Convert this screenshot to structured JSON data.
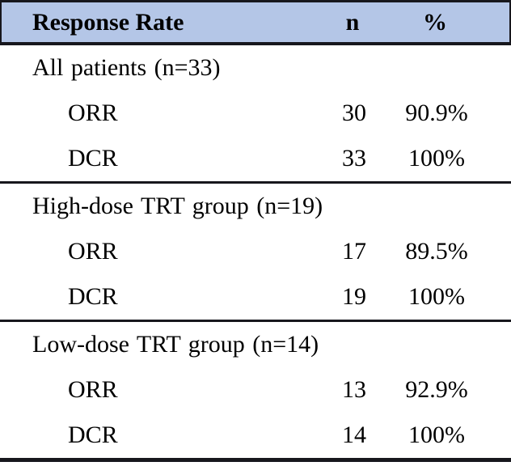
{
  "table": {
    "colors": {
      "header_bg": "#b4c6e7",
      "border": "#17171d",
      "text": "#000000"
    },
    "header": {
      "label": "Response Rate",
      "n": "n",
      "pct": "%"
    },
    "sections": [
      {
        "label": "All patients (n=33)",
        "rows": [
          {
            "label": "ORR",
            "n": "30",
            "pct": "90.9%"
          },
          {
            "label": "DCR",
            "n": "33",
            "pct": "100%"
          }
        ]
      },
      {
        "label": "High-dose TRT group (n=19)",
        "rows": [
          {
            "label": "ORR",
            "n": "17",
            "pct": "89.5%"
          },
          {
            "label": "DCR",
            "n": "19",
            "pct": "100%"
          }
        ]
      },
      {
        "label": "Low-dose TRT group (n=14)",
        "rows": [
          {
            "label": "ORR",
            "n": "13",
            "pct": "92.9%"
          },
          {
            "label": "DCR",
            "n": "14",
            "pct": "100%"
          }
        ]
      }
    ]
  }
}
